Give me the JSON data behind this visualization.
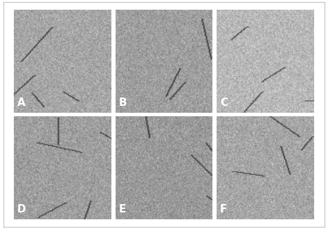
{
  "figure_bg": "#ffffff",
  "panel_bg": "#d0d0d0",
  "border_color": "#ffffff",
  "labels": [
    "A",
    "B",
    "C",
    "D",
    "E",
    "F"
  ],
  "label_color": "#ffffff",
  "label_fontsize": 11,
  "label_fontweight": "bold",
  "nrows": 2,
  "ncols": 3,
  "outer_border_color": "#cccccc",
  "outer_border_lw": 1,
  "panel_colors": [
    "#b8b8b8",
    "#b0b0b0",
    "#c8c8c8",
    "#b0b0b0",
    "#b0b0b0",
    "#b8b8b8"
  ],
  "figsize": [
    4.74,
    3.31
  ],
  "dpi": 100,
  "panel_edge_color": "#ffffff",
  "panel_lw": 1.5
}
